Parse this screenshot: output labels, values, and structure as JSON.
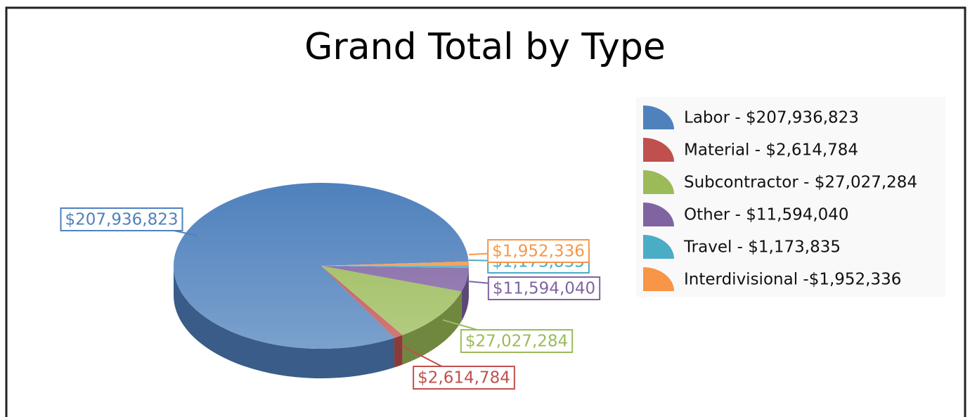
{
  "chart_data": {
    "type": "pie",
    "title": "Grand Total by Type",
    "categories": [
      "Labor",
      "Material",
      "Subcontractor",
      "Other",
      "Travel",
      "Interdivisional"
    ],
    "values": [
      207936823,
      2614784,
      27027284,
      11594040,
      1173835,
      1952336
    ],
    "value_labels": [
      "$207,936,823",
      "$2,614,784",
      "$27,027,284",
      "$11,594,040",
      "$1,173,835",
      "$1,952,336"
    ],
    "legend_labels": [
      "Labor - $207,936,823",
      "Material - $2,614,784",
      "Subcontractor - $27,027,284",
      "Other - $11,594,040",
      "Travel - $1,173,835",
      "Interdivisional -$1,952,336"
    ],
    "colors": [
      "#4f81bd",
      "#c0504d",
      "#9bbb59",
      "#8064a2",
      "#4bacc6",
      "#f79646"
    ],
    "legend": "right"
  }
}
